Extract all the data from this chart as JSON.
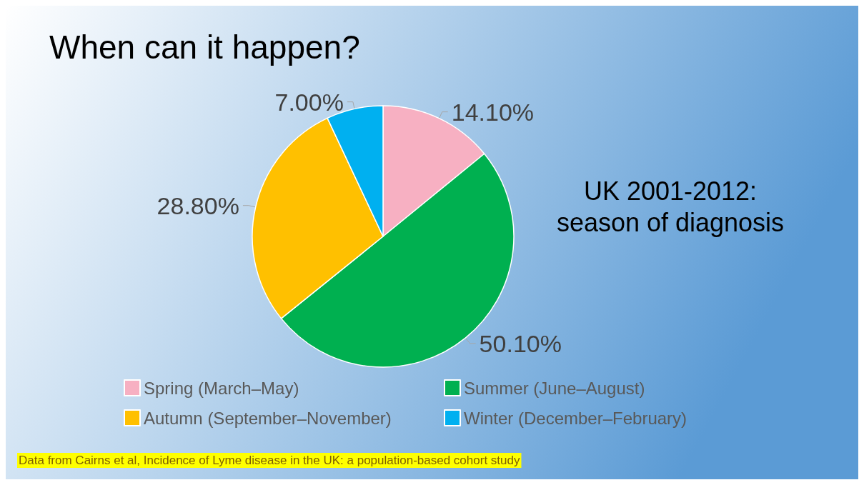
{
  "chart_data": {
    "type": "pie",
    "title": "When can it happen?",
    "subtitle": "UK 2001-2012:\nseason of diagnosis",
    "categories": [
      "Spring (March–May)",
      "Summer (June–August)",
      "Autumn (September–November)",
      "Winter (December–February)"
    ],
    "values": [
      14.1,
      50.1,
      28.8,
      7.0
    ],
    "value_labels": [
      "14.10%",
      "50.10%",
      "28.80%",
      "7.00%"
    ],
    "colors": [
      "#f7b0c2",
      "#00b050",
      "#ffc000",
      "#00b0f0"
    ],
    "legend": "bottom",
    "annotations": [
      "Data from Cairns et al, Incidence of Lyme disease in the UK: a population-based cohort study"
    ]
  }
}
